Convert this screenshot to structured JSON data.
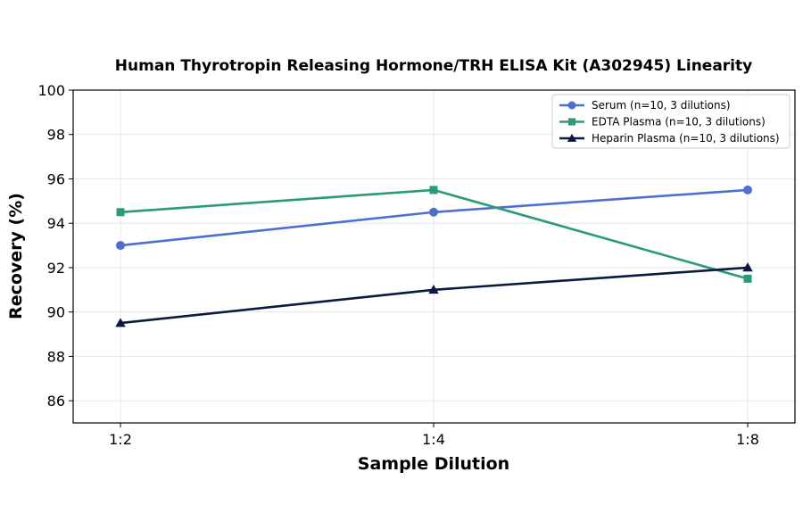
{
  "chart_data": {
    "type": "line",
    "title": "Human Thyrotropin Releasing Hormone/TRH ELISA Kit (A302945) Linearity",
    "xlabel": "Sample Dilution",
    "ylabel": "Recovery (%)",
    "categories": [
      "1:2",
      "1:4",
      "1:8"
    ],
    "ylim": [
      85,
      100
    ],
    "yticks": [
      86,
      88,
      90,
      92,
      94,
      96,
      98,
      100
    ],
    "grid": true,
    "legend_position": "top-right",
    "series": [
      {
        "name": "Serum (n=10, 3 dilutions)",
        "values": [
          93.0,
          94.5,
          95.5
        ],
        "color": "#4f6fd0",
        "marker": "circle"
      },
      {
        "name": "EDTA Plasma (n=10, 3 dilutions)",
        "values": [
          94.5,
          95.5,
          91.5
        ],
        "color": "#2a9a78",
        "marker": "square"
      },
      {
        "name": "Heparin Plasma (n=10, 3 dilutions)",
        "values": [
          89.5,
          91.0,
          92.0
        ],
        "color": "#0c1a40",
        "marker": "triangle"
      }
    ]
  }
}
